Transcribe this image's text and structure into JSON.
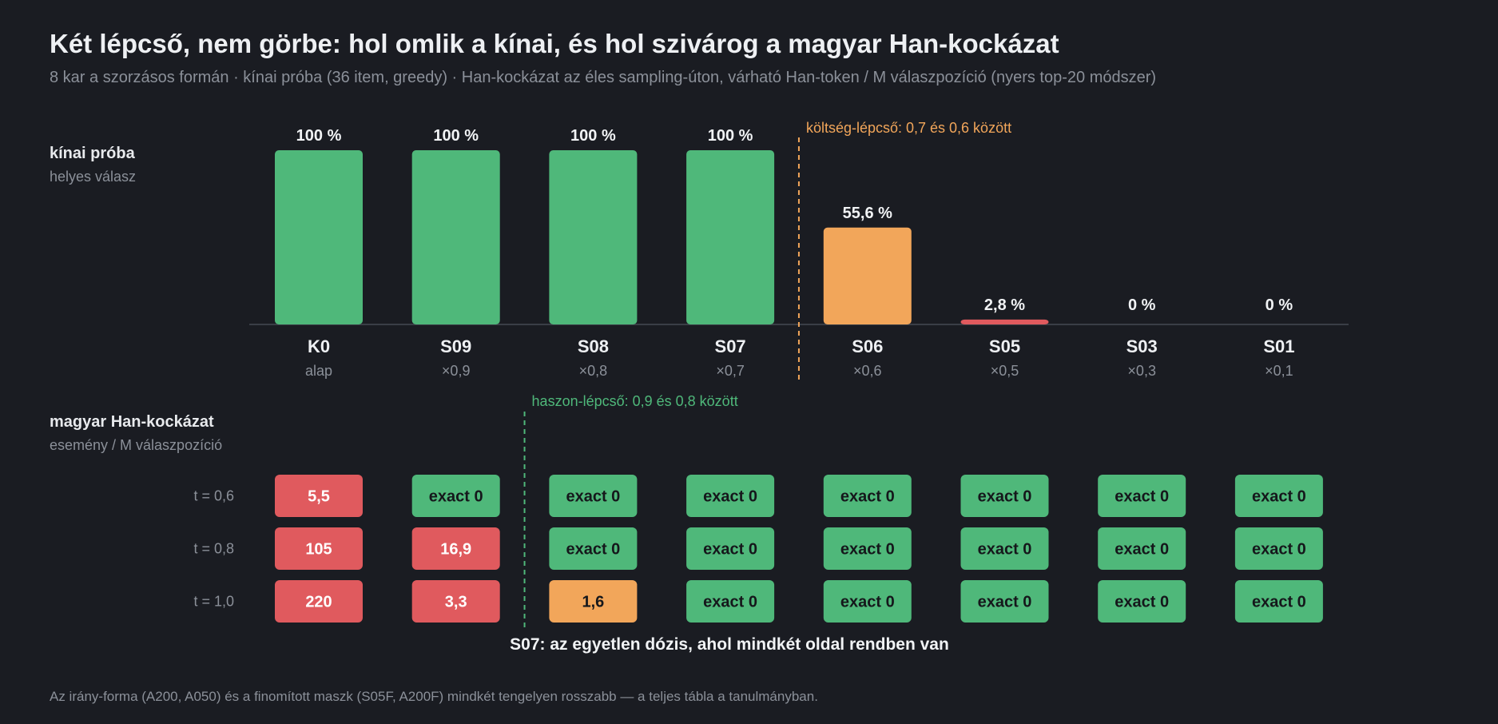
{
  "title": "Két lépcső, nem görbe: hol omlik a kínai, és hol szivárog a magyar Han-kockázat",
  "subtitle": "8 kar a szorzásos formán · kínai próba (36 item, greedy) · Han-kockázat az éles sampling-úton, várható Han-token / M válaszpozíció (nyers top-20 módszer)",
  "footer": "Az irány-forma (A200, A050) és a finomított maszk (S05F, A200F) mindkét tengelyen rosszabb — a teljes tábla a tanulmányban.",
  "colors": {
    "green": "#4fb87a",
    "orange": "#f2a65a",
    "red": "#e05a5e",
    "background": "#1a1c22"
  },
  "chart_data": [
    {
      "type": "bar",
      "panel_label": "kínai próba",
      "panel_sublabel": "helyes válasz",
      "categories": [
        "K0",
        "S09",
        "S08",
        "S07",
        "S06",
        "S05",
        "S03",
        "S01"
      ],
      "category_sublabels": [
        "alap",
        "×0,9",
        "×0,8",
        "×0,7",
        "×0,6",
        "×0,5",
        "×0,3",
        "×0,1"
      ],
      "values": [
        100,
        100,
        100,
        100,
        55.6,
        2.8,
        0,
        0
      ],
      "value_labels": [
        "100 %",
        "100 %",
        "100 %",
        "100 %",
        "55,6 %",
        "2,8 %",
        "0 %",
        "0 %"
      ],
      "bar_status": [
        "green",
        "green",
        "green",
        "green",
        "orange",
        "red",
        "red",
        "red"
      ],
      "ylim": [
        0,
        100
      ],
      "annotation": {
        "text": "költség-lépcső: 0,7 és 0,6 között",
        "between": [
          "S07",
          "S06"
        ]
      }
    },
    {
      "type": "table",
      "panel_label": "magyar Han-kockázat",
      "panel_sublabel": "esemény / M válaszpozíció",
      "columns": [
        "K0",
        "S09",
        "S08",
        "S07",
        "S06",
        "S05",
        "S03",
        "S01"
      ],
      "rows": [
        {
          "label": "t = 0,6",
          "cells": [
            "5,5",
            "exact 0",
            "exact 0",
            "exact 0",
            "exact 0",
            "exact 0",
            "exact 0",
            "exact 0"
          ],
          "status": [
            "red",
            "green",
            "green",
            "green",
            "green",
            "green",
            "green",
            "green"
          ]
        },
        {
          "label": "t = 0,8",
          "cells": [
            "105",
            "16,9",
            "exact 0",
            "exact 0",
            "exact 0",
            "exact 0",
            "exact 0",
            "exact 0"
          ],
          "status": [
            "red",
            "red",
            "green",
            "green",
            "green",
            "green",
            "green",
            "green"
          ]
        },
        {
          "label": "t = 1,0",
          "cells": [
            "220",
            "3,3",
            "1,6",
            "exact 0",
            "exact 0",
            "exact 0",
            "exact 0",
            "exact 0"
          ],
          "status": [
            "red",
            "red",
            "orange",
            "green",
            "green",
            "green",
            "green",
            "green"
          ]
        }
      ],
      "annotation": {
        "text": "haszon-lépcső: 0,9 és 0,8 között",
        "between": [
          "S09",
          "S08"
        ]
      },
      "callout": "S07: az egyetlen dózis, ahol mindkét oldal rendben van"
    }
  ]
}
